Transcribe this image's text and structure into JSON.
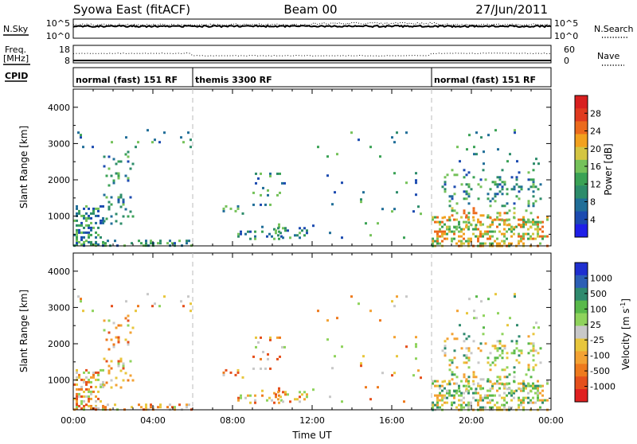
{
  "header": {
    "title": "Syowa East (fitACF)",
    "beam": "Beam 00",
    "date": "27/Jun/2011"
  },
  "nsky_panel": {
    "label": "N.Sky",
    "ticks": [
      "10^5",
      "10^0"
    ],
    "right_ticks": [
      "10^5",
      "10^0"
    ],
    "right_label": "N.Search"
  },
  "freq_panel": {
    "label_top": "Freq.",
    "label_unit": "[MHz]",
    "ticks": [
      "18",
      "8"
    ],
    "right_ticks": [
      "60",
      "0"
    ],
    "right_label": "Nave"
  },
  "cpid_panel": {
    "label": "CPID",
    "segments": [
      {
        "start": 0,
        "label": "normal (fast) 151 RF"
      },
      {
        "start": 6,
        "label": "themis 3300 RF"
      },
      {
        "start": 18,
        "label": "normal (fast) 151 RF"
      }
    ]
  },
  "chart_data": [
    {
      "type": "heatmap",
      "name": "power",
      "ylabel": "Slant Range [km]",
      "xlabel": "",
      "xlim": [
        0,
        24
      ],
      "ylim": [
        180,
        4500
      ],
      "yticks": [
        "1000",
        "2000",
        "3000",
        "4000"
      ],
      "colorbar": {
        "label": "Power [dB]",
        "ticks": [
          "28",
          "24",
          "20",
          "16",
          "12",
          "8",
          "4"
        ],
        "colors": [
          "#1f1fe8",
          "#1c4bb0",
          "#206e98",
          "#2d8c6a",
          "#3aa255",
          "#75c25a",
          "#d4c542",
          "#f2a11e",
          "#ec6a1c",
          "#e03a1f",
          "#d81f1f"
        ]
      }
    },
    {
      "type": "heatmap",
      "name": "velocity",
      "ylabel": "Slant Range [km]",
      "xlabel": "Time UT",
      "xlim": [
        0,
        24
      ],
      "ylim": [
        180,
        4500
      ],
      "xticks": [
        "00:00",
        "04:00",
        "08:00",
        "12:00",
        "16:00",
        "20:00",
        "00:00"
      ],
      "yticks": [
        "1000",
        "2000",
        "3000",
        "4000"
      ],
      "colorbar": {
        "label": "Velocity [m s^-1]",
        "ticks": [
          "1000",
          "500",
          "100",
          "25",
          "-25",
          "-100",
          "-500",
          "-1000"
        ],
        "colors": [
          "#1f2fd0",
          "#2c5fb5",
          "#2f8a6e",
          "#59b94a",
          "#8fd35c",
          "#c8c8c8",
          "#e8c63c",
          "#f3a233",
          "#ee7a1d",
          "#e5501c",
          "#e02020"
        ]
      }
    }
  ]
}
